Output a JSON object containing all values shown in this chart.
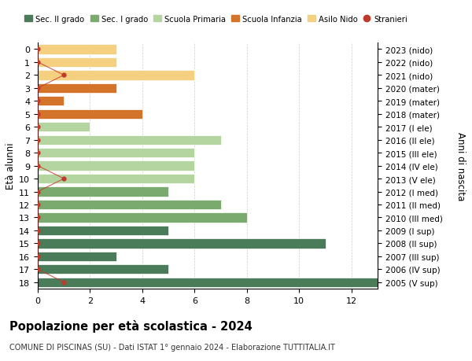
{
  "ages": [
    18,
    17,
    16,
    15,
    14,
    13,
    12,
    11,
    10,
    9,
    8,
    7,
    6,
    5,
    4,
    3,
    2,
    1,
    0
  ],
  "years": [
    "2005 (V sup)",
    "2006 (IV sup)",
    "2007 (III sup)",
    "2008 (II sup)",
    "2009 (I sup)",
    "2010 (III med)",
    "2011 (II med)",
    "2012 (I med)",
    "2013 (V ele)",
    "2014 (IV ele)",
    "2015 (III ele)",
    "2016 (II ele)",
    "2017 (I ele)",
    "2018 (mater)",
    "2019 (mater)",
    "2020 (mater)",
    "2021 (nido)",
    "2022 (nido)",
    "2023 (nido)"
  ],
  "values": [
    13,
    5,
    3,
    11,
    5,
    8,
    7,
    5,
    6,
    6,
    6,
    7,
    2,
    4,
    1,
    3,
    6,
    3,
    3
  ],
  "bar_colors": [
    "#4a7c59",
    "#4a7c59",
    "#4a7c59",
    "#4a7c59",
    "#4a7c59",
    "#7aaa6d",
    "#7aaa6d",
    "#7aaa6d",
    "#b5d5a0",
    "#b5d5a0",
    "#b5d5a0",
    "#b5d5a0",
    "#b5d5a0",
    "#d4732a",
    "#d4732a",
    "#d4732a",
    "#f5d080",
    "#f5d080",
    "#f5d080"
  ],
  "stranieri_x": [
    1,
    0,
    0,
    0,
    0,
    0,
    0,
    0,
    1,
    0,
    0,
    0,
    0,
    0,
    0,
    0,
    1,
    0,
    0
  ],
  "legend_colors": [
    "#4a7c59",
    "#7aaa6d",
    "#b5d5a0",
    "#d4732a",
    "#f5d080",
    "#c0392b"
  ],
  "legend_labels": [
    "Sec. II grado",
    "Sec. I grado",
    "Scuola Primaria",
    "Scuola Infanzia",
    "Asilo Nido",
    "Stranieri"
  ],
  "title": "Popolazione per età scolastica - 2024",
  "subtitle": "COMUNE DI PISCINAS (SU) - Dati ISTAT 1° gennaio 2024 - Elaborazione TUTTITALIA.IT",
  "ylabel_left": "Età alunni",
  "ylabel_right": "Anni di nascita",
  "xlim": [
    0,
    13
  ],
  "xticks": [
    0,
    2,
    4,
    6,
    8,
    10,
    12
  ],
  "background_color": "#ffffff",
  "grid_color": "#cccccc",
  "bar_height": 0.75
}
